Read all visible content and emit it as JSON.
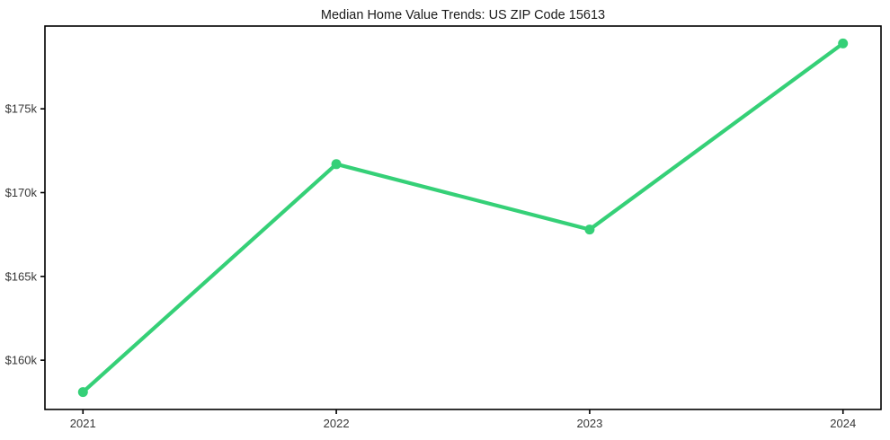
{
  "chart_data": {
    "type": "line",
    "title": "Median Home Value Trends: US ZIP Code 15613",
    "xlabel": "",
    "ylabel": "",
    "x": [
      2021,
      2022,
      2023,
      2024
    ],
    "x_tick_labels": [
      "2021",
      "2022",
      "2023",
      "2024"
    ],
    "series": [
      {
        "values": [
          158100,
          171700,
          167800,
          178900
        ],
        "color": "#35d077",
        "line_width": 4.2,
        "marker": "circle",
        "marker_radius": 5.5
      }
    ],
    "y_ticks": [
      160000,
      165000,
      170000,
      175000
    ],
    "y_tick_labels": [
      "$160k",
      "$165k",
      "$170k",
      "$175k"
    ],
    "xlim": [
      2020.85,
      2024.15
    ],
    "ylim": [
      157060,
      179940
    ],
    "grid": false,
    "legend": false,
    "background_color": "#ffffff",
    "frame_color": "#000000",
    "text_color": "#363636"
  }
}
